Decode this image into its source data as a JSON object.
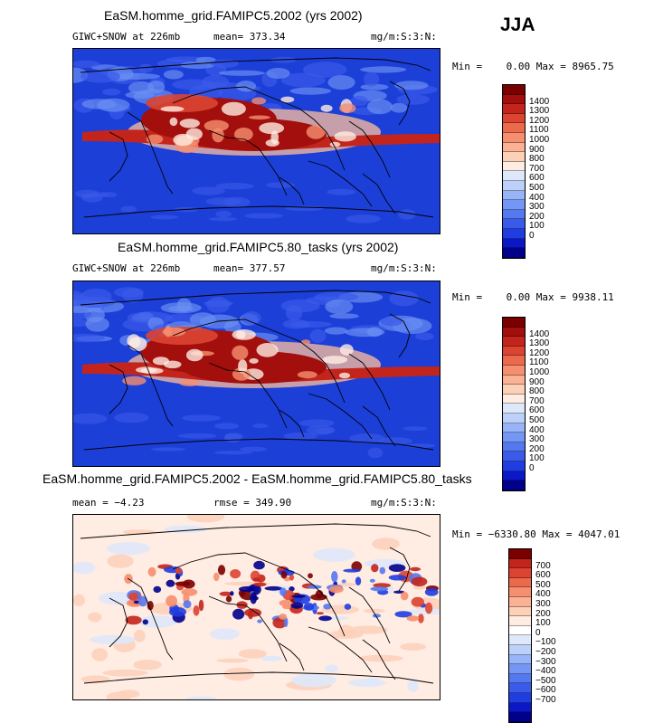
{
  "season": "JJA",
  "colors": {
    "pos": [
      "#00008b",
      "#0a18c8",
      "#1f3de0",
      "#3a5ae9",
      "#5478f0",
      "#7496f5",
      "#98b4f8",
      "#bcd0fa",
      "#dde8fb",
      "#ffece2",
      "#fdd0b8",
      "#fbb294",
      "#f68f6f",
      "#ec6a4c",
      "#db4431",
      "#c3251c",
      "#a20f0d",
      "#7a0000"
    ],
    "diff": [
      "#00008b",
      "#0a18c8",
      "#1f3de0",
      "#3a5ae9",
      "#5478f0",
      "#7496f5",
      "#98b4f8",
      "#bcd0fa",
      "#dde8fb",
      "#ffffff",
      "#ffece2",
      "#fdd0b8",
      "#fbb294",
      "#f68f6f",
      "#ec6a4c",
      "#db4431",
      "#c3251c",
      "#7a0000"
    ]
  },
  "panels": [
    {
      "title": "EaSM.homme_grid.FAMIPC5.2002 (yrs 2002)",
      "field": "GIWC+SNOW at 226mb",
      "stat_label": "mean=",
      "stat_value": "373.34",
      "stat2_label": "",
      "stat2_value": "",
      "units": "mg/m:S:3:N:",
      "minmax": "Min =    0.00 Max = 8965.75"
    },
    {
      "title": "EaSM.homme_grid.FAMIPC5.80_tasks (yrs 2002)",
      "field": "GIWC+SNOW at 226mb",
      "stat_label": "mean=",
      "stat_value": "377.57",
      "stat2_label": "",
      "stat2_value": "",
      "units": "mg/m:S:3:N:",
      "minmax": "Min =    0.00 Max = 9938.11"
    },
    {
      "title": "EaSM.homme_grid.FAMIPC5.2002 - EaSM.homme_grid.FAMIPC5.80_tasks",
      "field": "",
      "stat_label": "mean =",
      "stat_value": "−4.23",
      "stat2_label": "rmse =",
      "stat2_value": "349.90",
      "units": "mg/m:S:3:N:",
      "minmax": "Min = −6330.80 Max = 4047.01"
    }
  ],
  "chart_data": [
    {
      "type": "heatmap",
      "title": "EaSM.homme_grid.FAMIPC5.2002 (yrs 2002)",
      "variable": "GIWC+SNOW at 226mb",
      "units": "mg/m:S:3:N:",
      "mean": 373.34,
      "min": 0.0,
      "max": 8965.75,
      "colorbar_levels": [
        "1400",
        "1300",
        "1200",
        "1100",
        "1000",
        "900",
        "800",
        "700",
        "600",
        "500",
        "400",
        "300",
        "200",
        "100",
        "0"
      ]
    },
    {
      "type": "heatmap",
      "title": "EaSM.homme_grid.FAMIPC5.80_tasks (yrs 2002)",
      "variable": "GIWC+SNOW at 226mb",
      "units": "mg/m:S:3:N:",
      "mean": 377.57,
      "min": 0.0,
      "max": 9938.11,
      "colorbar_levels": [
        "1400",
        "1300",
        "1200",
        "1100",
        "1000",
        "900",
        "800",
        "700",
        "600",
        "500",
        "400",
        "300",
        "200",
        "100",
        "0"
      ]
    },
    {
      "type": "heatmap",
      "title": "EaSM.homme_grid.FAMIPC5.2002 - EaSM.homme_grid.FAMIPC5.80_tasks",
      "units": "mg/m:S:3:N:",
      "mean": -4.23,
      "rmse": 349.9,
      "min": -6330.8,
      "max": 4047.01,
      "colorbar_levels": [
        "700",
        "600",
        "500",
        "400",
        "300",
        "200",
        "100",
        "0",
        "−100",
        "−200",
        "−300",
        "−400",
        "−500",
        "−600",
        "−700"
      ]
    }
  ]
}
